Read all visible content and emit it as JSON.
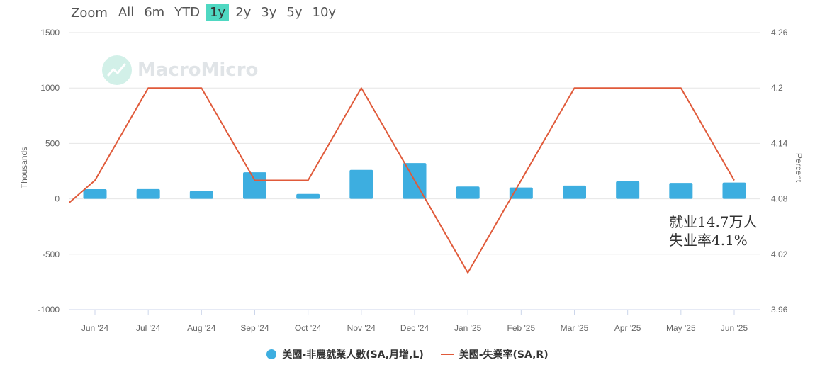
{
  "zoom": {
    "label": "Zoom",
    "options": [
      "All",
      "6m",
      "YTD",
      "1y",
      "2y",
      "3y",
      "5y",
      "10y"
    ],
    "selected": "1y"
  },
  "watermark": {
    "text": "MacroMicro"
  },
  "annotation": {
    "line1": "就业14.7万人",
    "line2": "失业率4.1%"
  },
  "colors": {
    "bar": "#3daee0",
    "line": "#e05a3a",
    "accent": "#4fd8c2",
    "grid": "#e6e6e6"
  },
  "chart_data": {
    "type": "bar+line",
    "categories": [
      "Jun '24",
      "Jul '24",
      "Aug '24",
      "Sep '24",
      "Oct '24",
      "Nov '24",
      "Dec '24",
      "Jan '25",
      "Feb '25",
      "Mar '25",
      "Apr '25",
      "May '25",
      "Jun '25"
    ],
    "left_axis": {
      "title": "Thousands",
      "min": -1000,
      "max": 1500,
      "ticks": [
        1500,
        1000,
        500,
        0,
        -500,
        -1000
      ]
    },
    "right_axis": {
      "title": "Percent",
      "min": 3.96,
      "max": 4.26,
      "ticks": [
        "4.26",
        "4.2",
        "4.14",
        "4.08",
        "4.02",
        "3.96"
      ]
    },
    "series": [
      {
        "name": "美國-非農就業人數(SA,月增,L)",
        "type": "bar",
        "axis": "left",
        "values": [
          87,
          88,
          71,
          240,
          44,
          261,
          323,
          111,
          102,
          120,
          158,
          144,
          147
        ]
      },
      {
        "name": "美國-失業率(SA,R)",
        "type": "line",
        "axis": "right",
        "values": [
          4.1,
          4.2,
          4.2,
          4.1,
          4.1,
          4.2,
          4.1,
          4.0,
          4.1,
          4.2,
          4.2,
          4.2,
          4.1
        ],
        "prior_value": 4.05
      }
    ],
    "grid": true,
    "legend_position": "bottom"
  }
}
